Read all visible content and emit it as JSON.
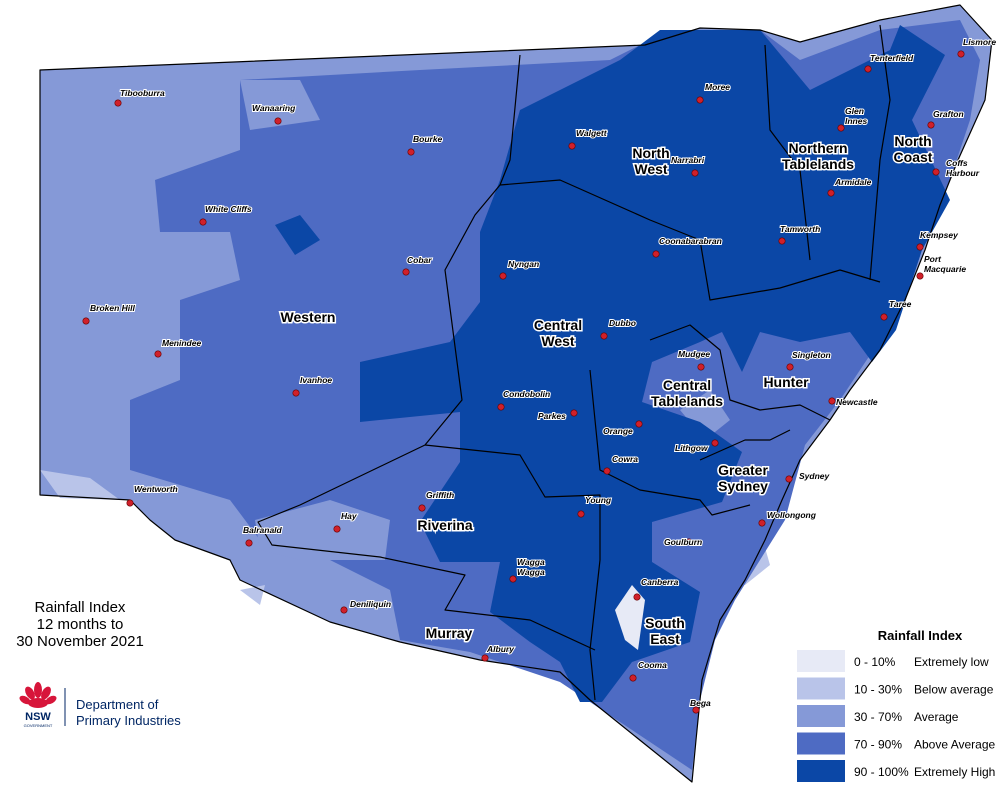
{
  "title": [
    "Rainfall Index",
    "12 months to",
    "30 November 2021"
  ],
  "logo": {
    "nsw": "NSW",
    "government": "GOVERNMENT",
    "department": [
      "Department of",
      "Primary Industries"
    ]
  },
  "legend": {
    "title": "Rainfall Index",
    "items": [
      {
        "range": "0 - 10%",
        "label": "Extremely low",
        "color": "#e7eaf6"
      },
      {
        "range": "10 - 30%",
        "label": "Below average",
        "color": "#b9c4e9"
      },
      {
        "range": "30 - 70%",
        "label": "Average",
        "color": "#8599d7"
      },
      {
        "range": "70 - 90%",
        "label": "Above Average",
        "color": "#4e6bc3"
      },
      {
        "range": "90 - 100%",
        "label": "Extremely High",
        "color": "#0b47a6"
      }
    ]
  },
  "regions": [
    {
      "label": [
        "Western"
      ]
    },
    {
      "label": [
        "North",
        "West"
      ]
    },
    {
      "label": [
        "Northern",
        "Tablelands"
      ]
    },
    {
      "label": [
        "North",
        "Coast"
      ]
    },
    {
      "label": [
        "Central",
        "West"
      ]
    },
    {
      "label": [
        "Central",
        "Tablelands"
      ]
    },
    {
      "label": [
        "Hunter"
      ]
    },
    {
      "label": [
        "Greater",
        "Sydney"
      ]
    },
    {
      "label": [
        "Riverina"
      ]
    },
    {
      "label": [
        "Murray"
      ]
    },
    {
      "label": [
        "South",
        "East"
      ]
    }
  ],
  "towns": [
    {
      "name": [
        "Tibooburra"
      ]
    },
    {
      "name": [
        "Wanaaring"
      ]
    },
    {
      "name": [
        "Bourke"
      ]
    },
    {
      "name": [
        "Moree"
      ]
    },
    {
      "name": [
        "Walgett"
      ]
    },
    {
      "name": [
        "Narrabri"
      ]
    },
    {
      "name": [
        "White Cliffs"
      ]
    },
    {
      "name": [
        "Cobar"
      ]
    },
    {
      "name": [
        "Nyngan"
      ]
    },
    {
      "name": [
        "Coonabarabran"
      ]
    },
    {
      "name": [
        "Tamworth"
      ]
    },
    {
      "name": [
        "Glen",
        "Innes"
      ]
    },
    {
      "name": [
        "Tenterfield"
      ]
    },
    {
      "name": [
        "Lismore"
      ]
    },
    {
      "name": [
        "Grafton"
      ]
    },
    {
      "name": [
        "Coffs",
        "Harbour"
      ]
    },
    {
      "name": [
        "Armidale"
      ]
    },
    {
      "name": [
        "Kempsey"
      ]
    },
    {
      "name": [
        "Port",
        "Macquarie"
      ]
    },
    {
      "name": [
        "Taree"
      ]
    },
    {
      "name": [
        "Broken Hill"
      ]
    },
    {
      "name": [
        "Menindee"
      ]
    },
    {
      "name": [
        "Dubbo"
      ]
    },
    {
      "name": [
        "Mudgee"
      ]
    },
    {
      "name": [
        "Singleton"
      ]
    },
    {
      "name": [
        "Ivanhoe"
      ]
    },
    {
      "name": [
        "Condobolin"
      ]
    },
    {
      "name": [
        "Parkes"
      ]
    },
    {
      "name": [
        "Newcastle"
      ]
    },
    {
      "name": [
        "Orange"
      ]
    },
    {
      "name": [
        "Lithgow"
      ]
    },
    {
      "name": [
        "Cowra"
      ]
    },
    {
      "name": [
        "Sydney"
      ]
    },
    {
      "name": [
        "Wentworth"
      ]
    },
    {
      "name": [
        "Griffith"
      ]
    },
    {
      "name": [
        "Young"
      ]
    },
    {
      "name": [
        "Wollongong"
      ]
    },
    {
      "name": [
        "Hay"
      ]
    },
    {
      "name": [
        "Balranald"
      ]
    },
    {
      "name": [
        "Goulburn"
      ]
    },
    {
      "name": [
        "Wagga",
        "Wagga"
      ]
    },
    {
      "name": [
        "Canberra"
      ]
    },
    {
      "name": [
        "Deniliquin"
      ]
    },
    {
      "name": [
        "Albury"
      ]
    },
    {
      "name": [
        "Cooma"
      ]
    },
    {
      "name": [
        "Bega"
      ]
    }
  ]
}
